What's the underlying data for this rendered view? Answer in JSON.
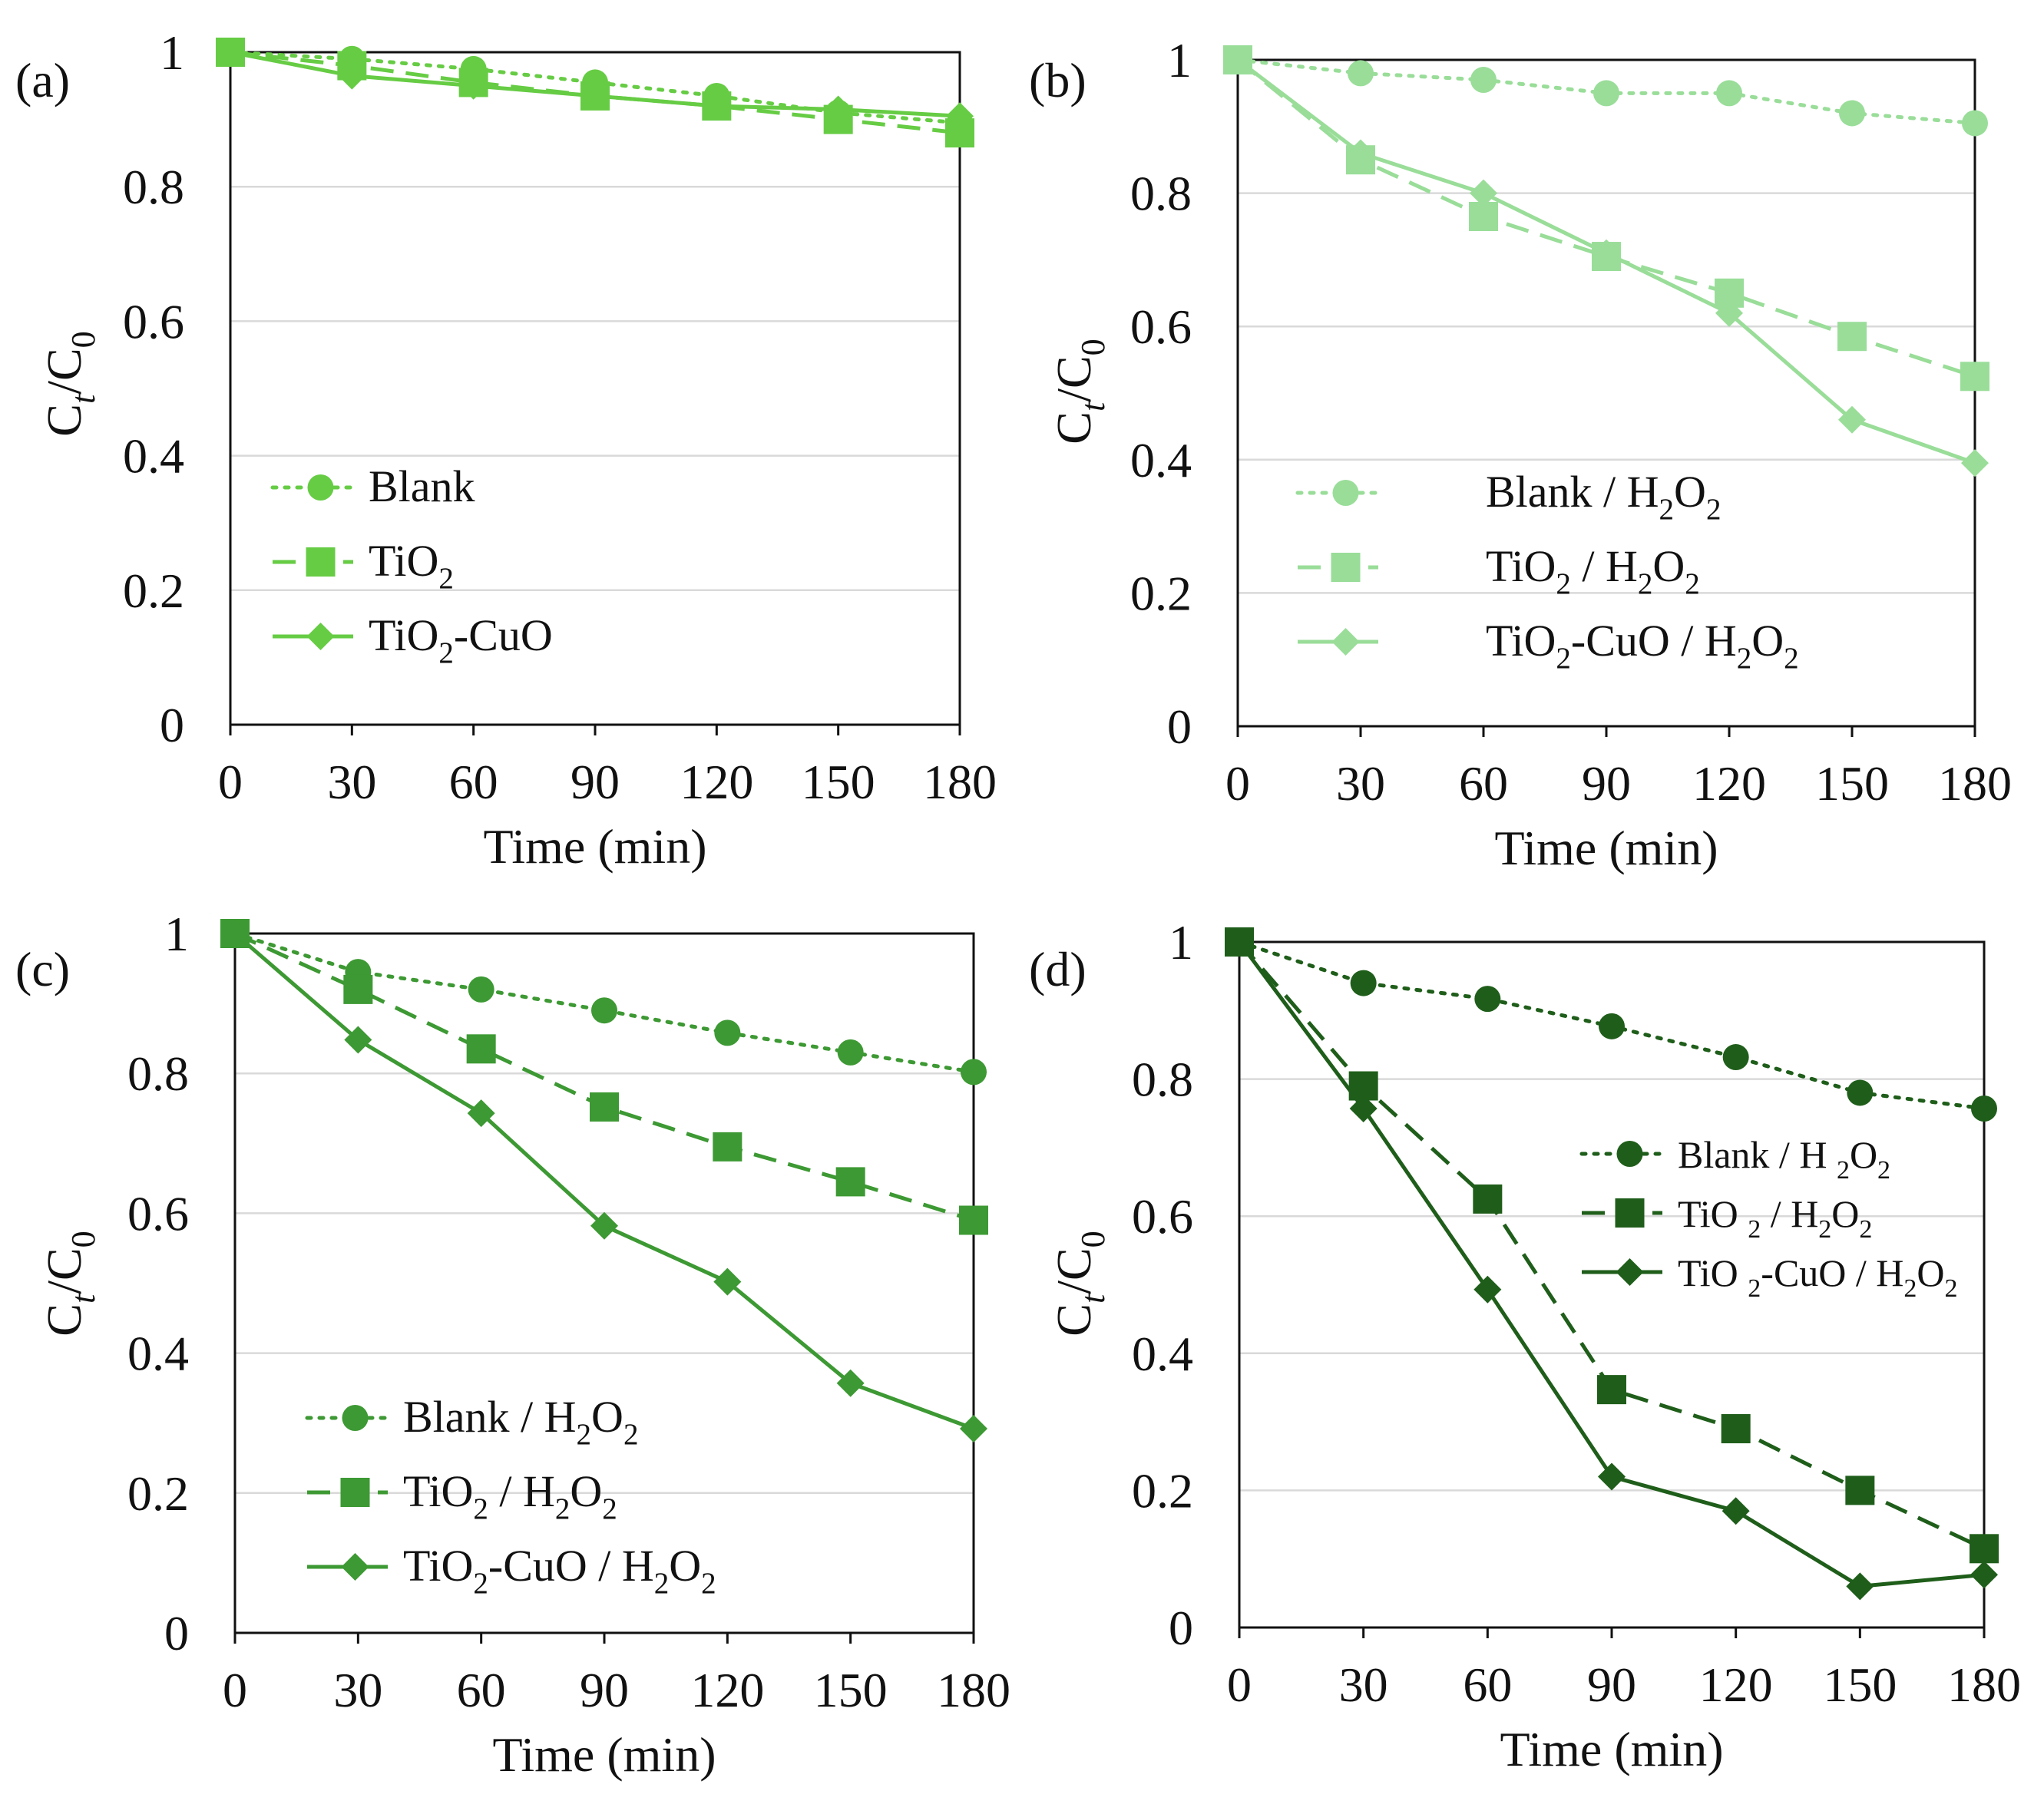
{
  "figure": {
    "xlabel": "Time (min)",
    "ylabel_main": "C",
    "ylabel_sub1": "t",
    "ylabel_mid": "/C",
    "ylabel_sub2": "0"
  },
  "chart_data": [
    {
      "panel": "(a)",
      "type": "line",
      "x": [
        0,
        30,
        60,
        90,
        120,
        150,
        180
      ],
      "xticks": [
        "0",
        "30",
        "60",
        "90",
        "120",
        "150",
        "180"
      ],
      "yticks": [
        "0",
        "0.2",
        "0.4",
        "0.6",
        "0.8",
        "1"
      ],
      "xlim": [
        0,
        180
      ],
      "ylim": [
        0,
        1
      ],
      "xlabel": "Time (min)",
      "ylabel": "Ct/C0",
      "color": "#66cc44",
      "legend_position": "lower-left",
      "series": [
        {
          "name": "Blank",
          "legend_parts": [
            "Blank"
          ],
          "style": "dotted",
          "marker": "circle",
          "values": [
            1.0,
            0.99,
            0.975,
            0.955,
            0.935,
            0.91,
            0.895
          ]
        },
        {
          "name": "TiO2",
          "legend_parts": [
            "TiO",
            "2"
          ],
          "style": "dashed",
          "marker": "square",
          "values": [
            1.0,
            0.98,
            0.955,
            0.935,
            0.92,
            0.9,
            0.88
          ]
        },
        {
          "name": "TiO2-CuO",
          "legend_parts": [
            "TiO",
            "2",
            "-CuO"
          ],
          "style": "solid",
          "marker": "diamond",
          "values": [
            1.0,
            0.965,
            0.95,
            0.935,
            0.92,
            0.915,
            0.905
          ]
        }
      ]
    },
    {
      "panel": "(b)",
      "type": "line",
      "x": [
        0,
        30,
        60,
        90,
        120,
        150,
        180
      ],
      "xticks": [
        "0",
        "30",
        "60",
        "90",
        "120",
        "150",
        "180"
      ],
      "yticks": [
        "0",
        "0.2",
        "0.4",
        "0.6",
        "0.8",
        "1"
      ],
      "xlim": [
        0,
        180
      ],
      "ylim": [
        0,
        1
      ],
      "xlabel": "Time (min)",
      "ylabel": "Ct/C0",
      "color": "#99dd99",
      "legend_position": "lower-left",
      "series": [
        {
          "name": "Blank / H2O2",
          "legend_parts": [
            "Blank / H",
            "2",
            "O",
            "2"
          ],
          "style": "dotted",
          "marker": "circle",
          "values": [
            1.0,
            0.98,
            0.97,
            0.95,
            0.95,
            0.92,
            0.905
          ]
        },
        {
          "name": "TiO2 / H2O2",
          "legend_parts": [
            "TiO",
            "2",
            " / H",
            "2",
            "O",
            "2"
          ],
          "style": "dashed",
          "marker": "square",
          "values": [
            1.0,
            0.85,
            0.765,
            0.705,
            0.65,
            0.585,
            0.525
          ]
        },
        {
          "name": "TiO2-CuO / H2O2",
          "legend_parts": [
            "TiO",
            "2",
            "-CuO / H",
            "2",
            "O",
            "2"
          ],
          "style": "solid",
          "marker": "diamond",
          "values": [
            1.0,
            0.86,
            0.8,
            0.71,
            0.62,
            0.46,
            0.395
          ]
        }
      ]
    },
    {
      "panel": "(c)",
      "type": "line",
      "x": [
        0,
        30,
        60,
        90,
        120,
        150,
        180
      ],
      "xticks": [
        "0",
        "30",
        "60",
        "90",
        "120",
        "150",
        "180"
      ],
      "yticks": [
        "0",
        "0.2",
        "0.4",
        "0.6",
        "0.8",
        "1"
      ],
      "xlim": [
        0,
        180
      ],
      "ylim": [
        0,
        1
      ],
      "xlabel": "Time (min)",
      "ylabel": "Ct/C0",
      "color": "#3d9933",
      "legend_position": "lower-left",
      "series": [
        {
          "name": "Blank / H2O2",
          "legend_parts": [
            "Blank / H",
            "2",
            "O",
            "2"
          ],
          "style": "dotted",
          "marker": "circle",
          "values": [
            1.0,
            0.945,
            0.92,
            0.89,
            0.858,
            0.83,
            0.802
          ]
        },
        {
          "name": "TiO2 / H2O2",
          "legend_parts": [
            "TiO",
            "2",
            " / H",
            "2",
            "O",
            "2"
          ],
          "style": "dashed",
          "marker": "square",
          "values": [
            1.0,
            0.92,
            0.835,
            0.752,
            0.695,
            0.645,
            0.59
          ]
        },
        {
          "name": "TiO2-CuO / H2O2",
          "legend_parts": [
            "TiO",
            "2",
            "-CuO / H",
            "2",
            "O",
            "2"
          ],
          "style": "solid",
          "marker": "diamond",
          "values": [
            1.0,
            0.848,
            0.743,
            0.582,
            0.502,
            0.357,
            0.292
          ]
        }
      ]
    },
    {
      "panel": "(d)",
      "type": "line",
      "x": [
        0,
        30,
        60,
        90,
        120,
        150,
        180
      ],
      "xticks": [
        "0",
        "30",
        "60",
        "90",
        "120",
        "150",
        "180"
      ],
      "yticks": [
        "0",
        "0.2",
        "0.4",
        "0.6",
        "0.8",
        "1"
      ],
      "xlim": [
        0,
        180
      ],
      "ylim": [
        0,
        1
      ],
      "xlabel": "Time (min)",
      "ylabel": "Ct/C0",
      "color": "#1f5e1a",
      "legend_position": "upper-right",
      "series": [
        {
          "name": "Blank / H 2O2",
          "legend_parts": [
            "Blank / H ",
            "2",
            "O",
            "2"
          ],
          "style": "dotted",
          "marker": "circle",
          "values": [
            1.0,
            0.94,
            0.917,
            0.877,
            0.832,
            0.78,
            0.757
          ]
        },
        {
          "name": "TiO 2 / H2O2",
          "legend_parts": [
            "TiO ",
            "2",
            " / H",
            "2",
            "O",
            "2"
          ],
          "style": "dashed",
          "marker": "square",
          "values": [
            1.0,
            0.79,
            0.625,
            0.347,
            0.29,
            0.2,
            0.115
          ]
        },
        {
          "name": "TiO 2-CuO / H2O2",
          "legend_parts": [
            "TiO ",
            "2",
            "-CuO / H",
            "2",
            "O",
            "2"
          ],
          "style": "solid",
          "marker": "diamond",
          "values": [
            1.0,
            0.757,
            0.493,
            0.22,
            0.17,
            0.06,
            0.077
          ]
        }
      ]
    }
  ]
}
